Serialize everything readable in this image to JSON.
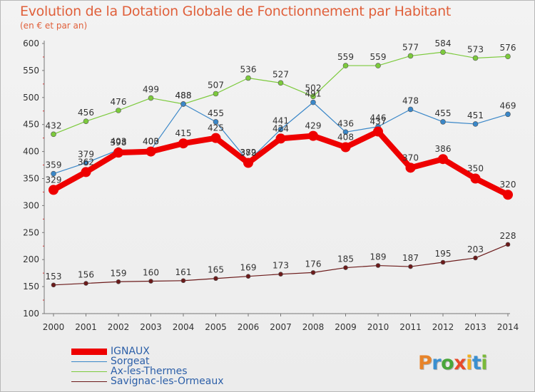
{
  "header": {
    "title": "Evolution de la Dotation Globale de Fonctionnement par Habitant",
    "subtitle": "(en € et par an)"
  },
  "logo": {
    "letters": [
      "P",
      "r",
      "o",
      "x",
      "i",
      "t",
      "i"
    ],
    "colors": [
      "#e8842a",
      "#3a8fd0",
      "#4aa63a",
      "#e84a2a",
      "#f0b020",
      "#3a8fd0",
      "#7aba3a"
    ]
  },
  "chart_data": {
    "type": "line",
    "title": "Evolution de la Dotation Globale de Fonctionnement par Habitant",
    "subtitle": "(en € et par an)",
    "x": [
      "2000",
      "2001",
      "2002",
      "2003",
      "2004",
      "2005",
      "2006",
      "2007",
      "2008",
      "2009",
      "2010",
      "2011",
      "2012",
      "2013",
      "2014"
    ],
    "ylim": [
      100,
      600
    ],
    "yticks": [
      100,
      150,
      200,
      250,
      300,
      350,
      400,
      450,
      500,
      550,
      600
    ],
    "grid": false,
    "legend_position": "bottom-left",
    "series": [
      {
        "name": "IGNAUX",
        "color": "#ee0000",
        "values": [
          329,
          362,
          398,
          400,
          415,
          425,
          379,
          424,
          429,
          408,
          437,
          370,
          386,
          350,
          320
        ]
      },
      {
        "name": "Sorgeat",
        "color": "#3a87c8",
        "values": [
          359,
          379,
          403,
          403,
          488,
          455,
          382,
          441,
          491,
          436,
          446,
          478,
          455,
          451,
          469
        ]
      },
      {
        "name": "Ax-les-Thermes",
        "color": "#7cca3c",
        "values": [
          432,
          456,
          476,
          499,
          488,
          507,
          536,
          527,
          502,
          559,
          559,
          577,
          584,
          573,
          576
        ]
      },
      {
        "name": "Savignac-les-Ormeaux",
        "color": "#6b1a1a",
        "values": [
          153,
          156,
          159,
          160,
          161,
          165,
          169,
          173,
          176,
          185,
          189,
          187,
          195,
          203,
          228
        ]
      }
    ]
  }
}
